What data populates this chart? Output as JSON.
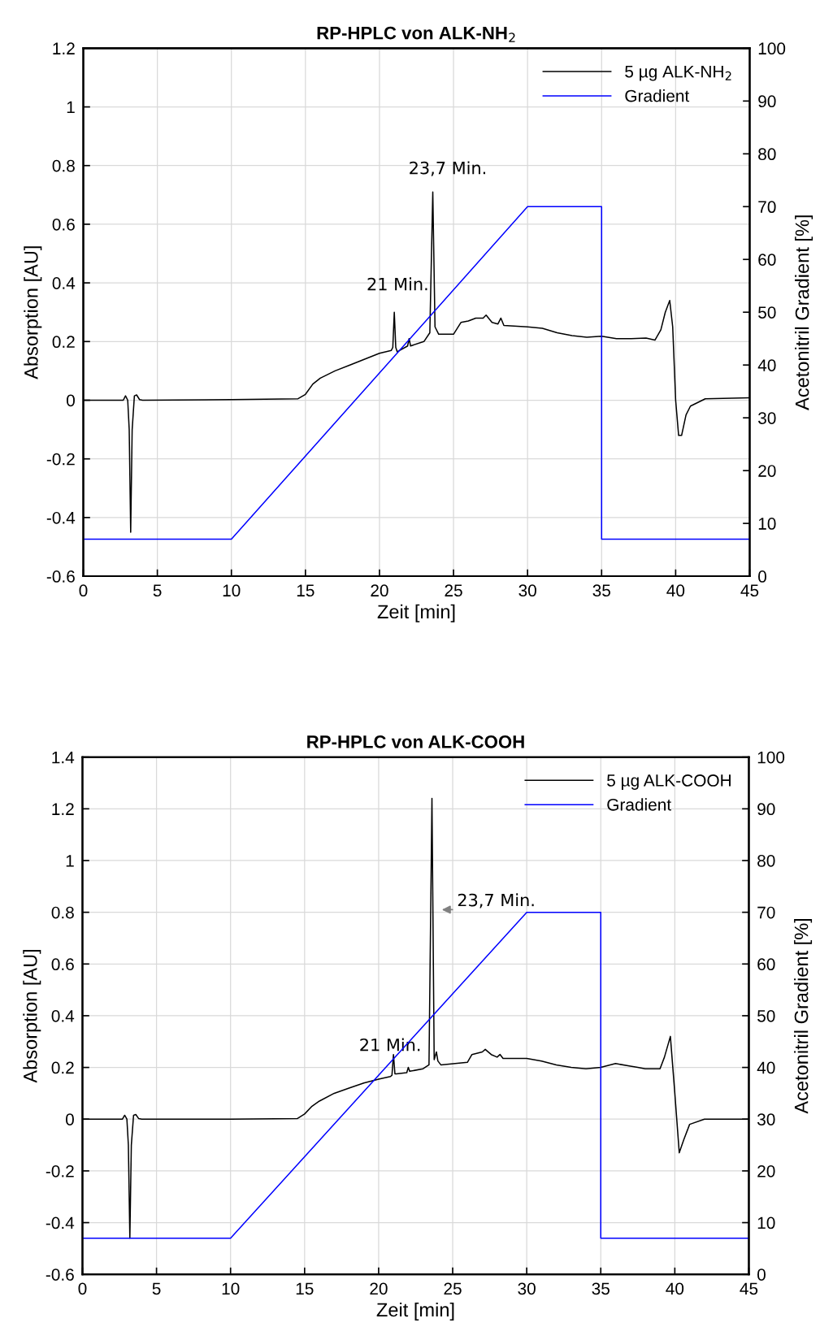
{
  "chart_data": [
    {
      "type": "line",
      "title": "RP-HPLC von ALK-NH$_{2}$",
      "xlabel": "Zeit [min]",
      "ylabel": "Absorption [AU]",
      "y2label": "Acetonitril Gradient [%]",
      "xlim": [
        0,
        45
      ],
      "xticks": [
        0,
        5,
        10,
        15,
        20,
        25,
        30,
        35,
        40,
        45
      ],
      "ylim": [
        -0.6,
        1.2
      ],
      "yticks": [
        -0.6,
        -0.4,
        -0.2,
        0,
        0.2,
        0.4,
        0.6,
        0.8,
        1,
        1.2
      ],
      "y2lim": [
        0,
        100
      ],
      "y2ticks": [
        0,
        10,
        20,
        30,
        40,
        50,
        60,
        70,
        80,
        90,
        100
      ],
      "grid": true,
      "legend": "top right",
      "annotations": [
        "21 Min.",
        "23,7 Min."
      ],
      "series": [
        {
          "name": "5 µg ALK-NH$_{2}$",
          "color": "#000000",
          "x": [
            0,
            2.7,
            2.85,
            3.0,
            3.1,
            3.2,
            3.3,
            3.45,
            3.6,
            3.8,
            4,
            10,
            14.5,
            15,
            15.5,
            16,
            17,
            18,
            19,
            20,
            20.8,
            20.9,
            21.0,
            21.1,
            21.2,
            21.9,
            22.0,
            22.1,
            23,
            23.4,
            23.6,
            23.75,
            24,
            25,
            25.5,
            26,
            26.5,
            27,
            27.2,
            27.6,
            28,
            28.2,
            28.4,
            30,
            31,
            32,
            33,
            34,
            35,
            36,
            37,
            38,
            38.6,
            39,
            39.3,
            39.6,
            39.8,
            40,
            40.2,
            40.4,
            40.7,
            41,
            42,
            45
          ],
          "values": [
            0,
            0,
            0.015,
            0,
            -0.1,
            -0.45,
            -0.1,
            0.015,
            0.018,
            0.002,
            0,
            0.002,
            0.005,
            0.02,
            0.055,
            0.075,
            0.1,
            0.12,
            0.14,
            0.16,
            0.17,
            0.18,
            0.3,
            0.18,
            0.165,
            0.185,
            0.21,
            0.185,
            0.2,
            0.23,
            0.71,
            0.25,
            0.225,
            0.225,
            0.265,
            0.27,
            0.28,
            0.28,
            0.29,
            0.265,
            0.26,
            0.28,
            0.255,
            0.25,
            0.245,
            0.23,
            0.22,
            0.215,
            0.218,
            0.21,
            0.21,
            0.212,
            0.205,
            0.24,
            0.3,
            0.34,
            0.25,
            0,
            -0.12,
            -0.12,
            -0.05,
            -0.02,
            0.005,
            0.008
          ]
        },
        {
          "name": "Gradient",
          "color": "#0000ff",
          "axis": "y2",
          "x": [
            0,
            10,
            30,
            35,
            35,
            45
          ],
          "values": [
            7,
            7,
            70,
            70,
            7,
            7
          ]
        }
      ]
    },
    {
      "type": "line",
      "title": "RP-HPLC von ALK-COOH",
      "xlabel": "Zeit [min]",
      "ylabel": "Absorption [AU]",
      "y2label": "Acetonitril Gradient [%]",
      "xlim": [
        0,
        45
      ],
      "xticks": [
        0,
        5,
        10,
        15,
        20,
        25,
        30,
        35,
        40,
        45
      ],
      "ylim": [
        -0.6,
        1.4
      ],
      "yticks": [
        -0.6,
        -0.4,
        -0.2,
        0,
        0.2,
        0.4,
        0.6,
        0.8,
        1,
        1.2,
        1.4
      ],
      "y2lim": [
        0,
        100
      ],
      "y2ticks": [
        0,
        10,
        20,
        30,
        40,
        50,
        60,
        70,
        80,
        90,
        100
      ],
      "grid": true,
      "legend": "top right",
      "annotations": [
        "21 Min.",
        "23,7 Min."
      ],
      "series": [
        {
          "name": "5 µg ALK-COOH",
          "color": "#000000",
          "x": [
            0,
            2.7,
            2.85,
            3.0,
            3.1,
            3.2,
            3.3,
            3.45,
            3.6,
            3.8,
            4,
            10,
            14.5,
            15,
            15.5,
            16,
            17,
            18,
            19,
            20,
            20.8,
            20.9,
            21.0,
            21.1,
            21.2,
            21.9,
            22.0,
            22.1,
            23,
            23.4,
            23.6,
            23.75,
            23.9,
            24.0,
            24.2,
            26,
            26.3,
            27,
            27.2,
            27.6,
            28,
            28.2,
            28.4,
            30,
            31,
            32,
            33,
            34,
            35,
            36,
            37,
            37.5,
            38,
            39,
            39.3,
            39.7,
            40,
            40.3,
            40.6,
            41,
            42,
            45
          ],
          "values": [
            0,
            0,
            0.015,
            0,
            -0.1,
            -0.46,
            -0.1,
            0.015,
            0.018,
            0.002,
            0,
            0,
            0.002,
            0.02,
            0.05,
            0.07,
            0.1,
            0.12,
            0.14,
            0.155,
            0.165,
            0.17,
            0.25,
            0.175,
            0.175,
            0.18,
            0.2,
            0.185,
            0.195,
            0.21,
            1.24,
            0.23,
            0.26,
            0.225,
            0.21,
            0.22,
            0.25,
            0.26,
            0.27,
            0.25,
            0.24,
            0.25,
            0.235,
            0.235,
            0.225,
            0.21,
            0.2,
            0.195,
            0.2,
            0.215,
            0.205,
            0.2,
            0.195,
            0.195,
            0.24,
            0.32,
            0.1,
            -0.13,
            -0.08,
            -0.02,
            0,
            0
          ]
        },
        {
          "name": "Gradient",
          "color": "#0000ff",
          "axis": "y2",
          "x": [
            0,
            10,
            30,
            35,
            35,
            45
          ],
          "values": [
            7,
            7,
            70,
            70,
            7,
            7
          ]
        }
      ]
    }
  ]
}
